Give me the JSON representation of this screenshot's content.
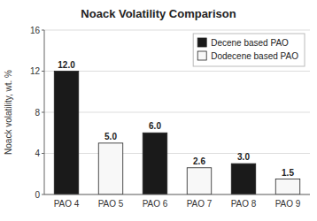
{
  "chart_data": {
    "type": "bar",
    "title": "Noack Volatility Comparison",
    "ylabel": "Noack volatility, wt. %",
    "categories": [
      "PAO 4",
      "PAO 5",
      "PAO 6",
      "PAO 7",
      "PAO 8",
      "PAO 9"
    ],
    "series": [
      {
        "name": "Decene based PAO",
        "color": "#1a1a1a",
        "values": [
          12.0,
          null,
          6.0,
          null,
          3.0,
          null
        ],
        "value_labels": [
          "12.0",
          null,
          "6.0",
          null,
          "3.0",
          null
        ]
      },
      {
        "name": "Dodecene based PAO",
        "color": "#f8f8f8",
        "values": [
          null,
          5.0,
          null,
          2.6,
          null,
          1.5
        ],
        "value_labels": [
          null,
          "5.0",
          null,
          "2.6",
          null,
          "1.5"
        ]
      }
    ],
    "ylim": [
      0,
      16
    ],
    "yticks": [
      0,
      4,
      8,
      12,
      16
    ],
    "grid": true,
    "legend": "upper right",
    "data_labels": true
  }
}
